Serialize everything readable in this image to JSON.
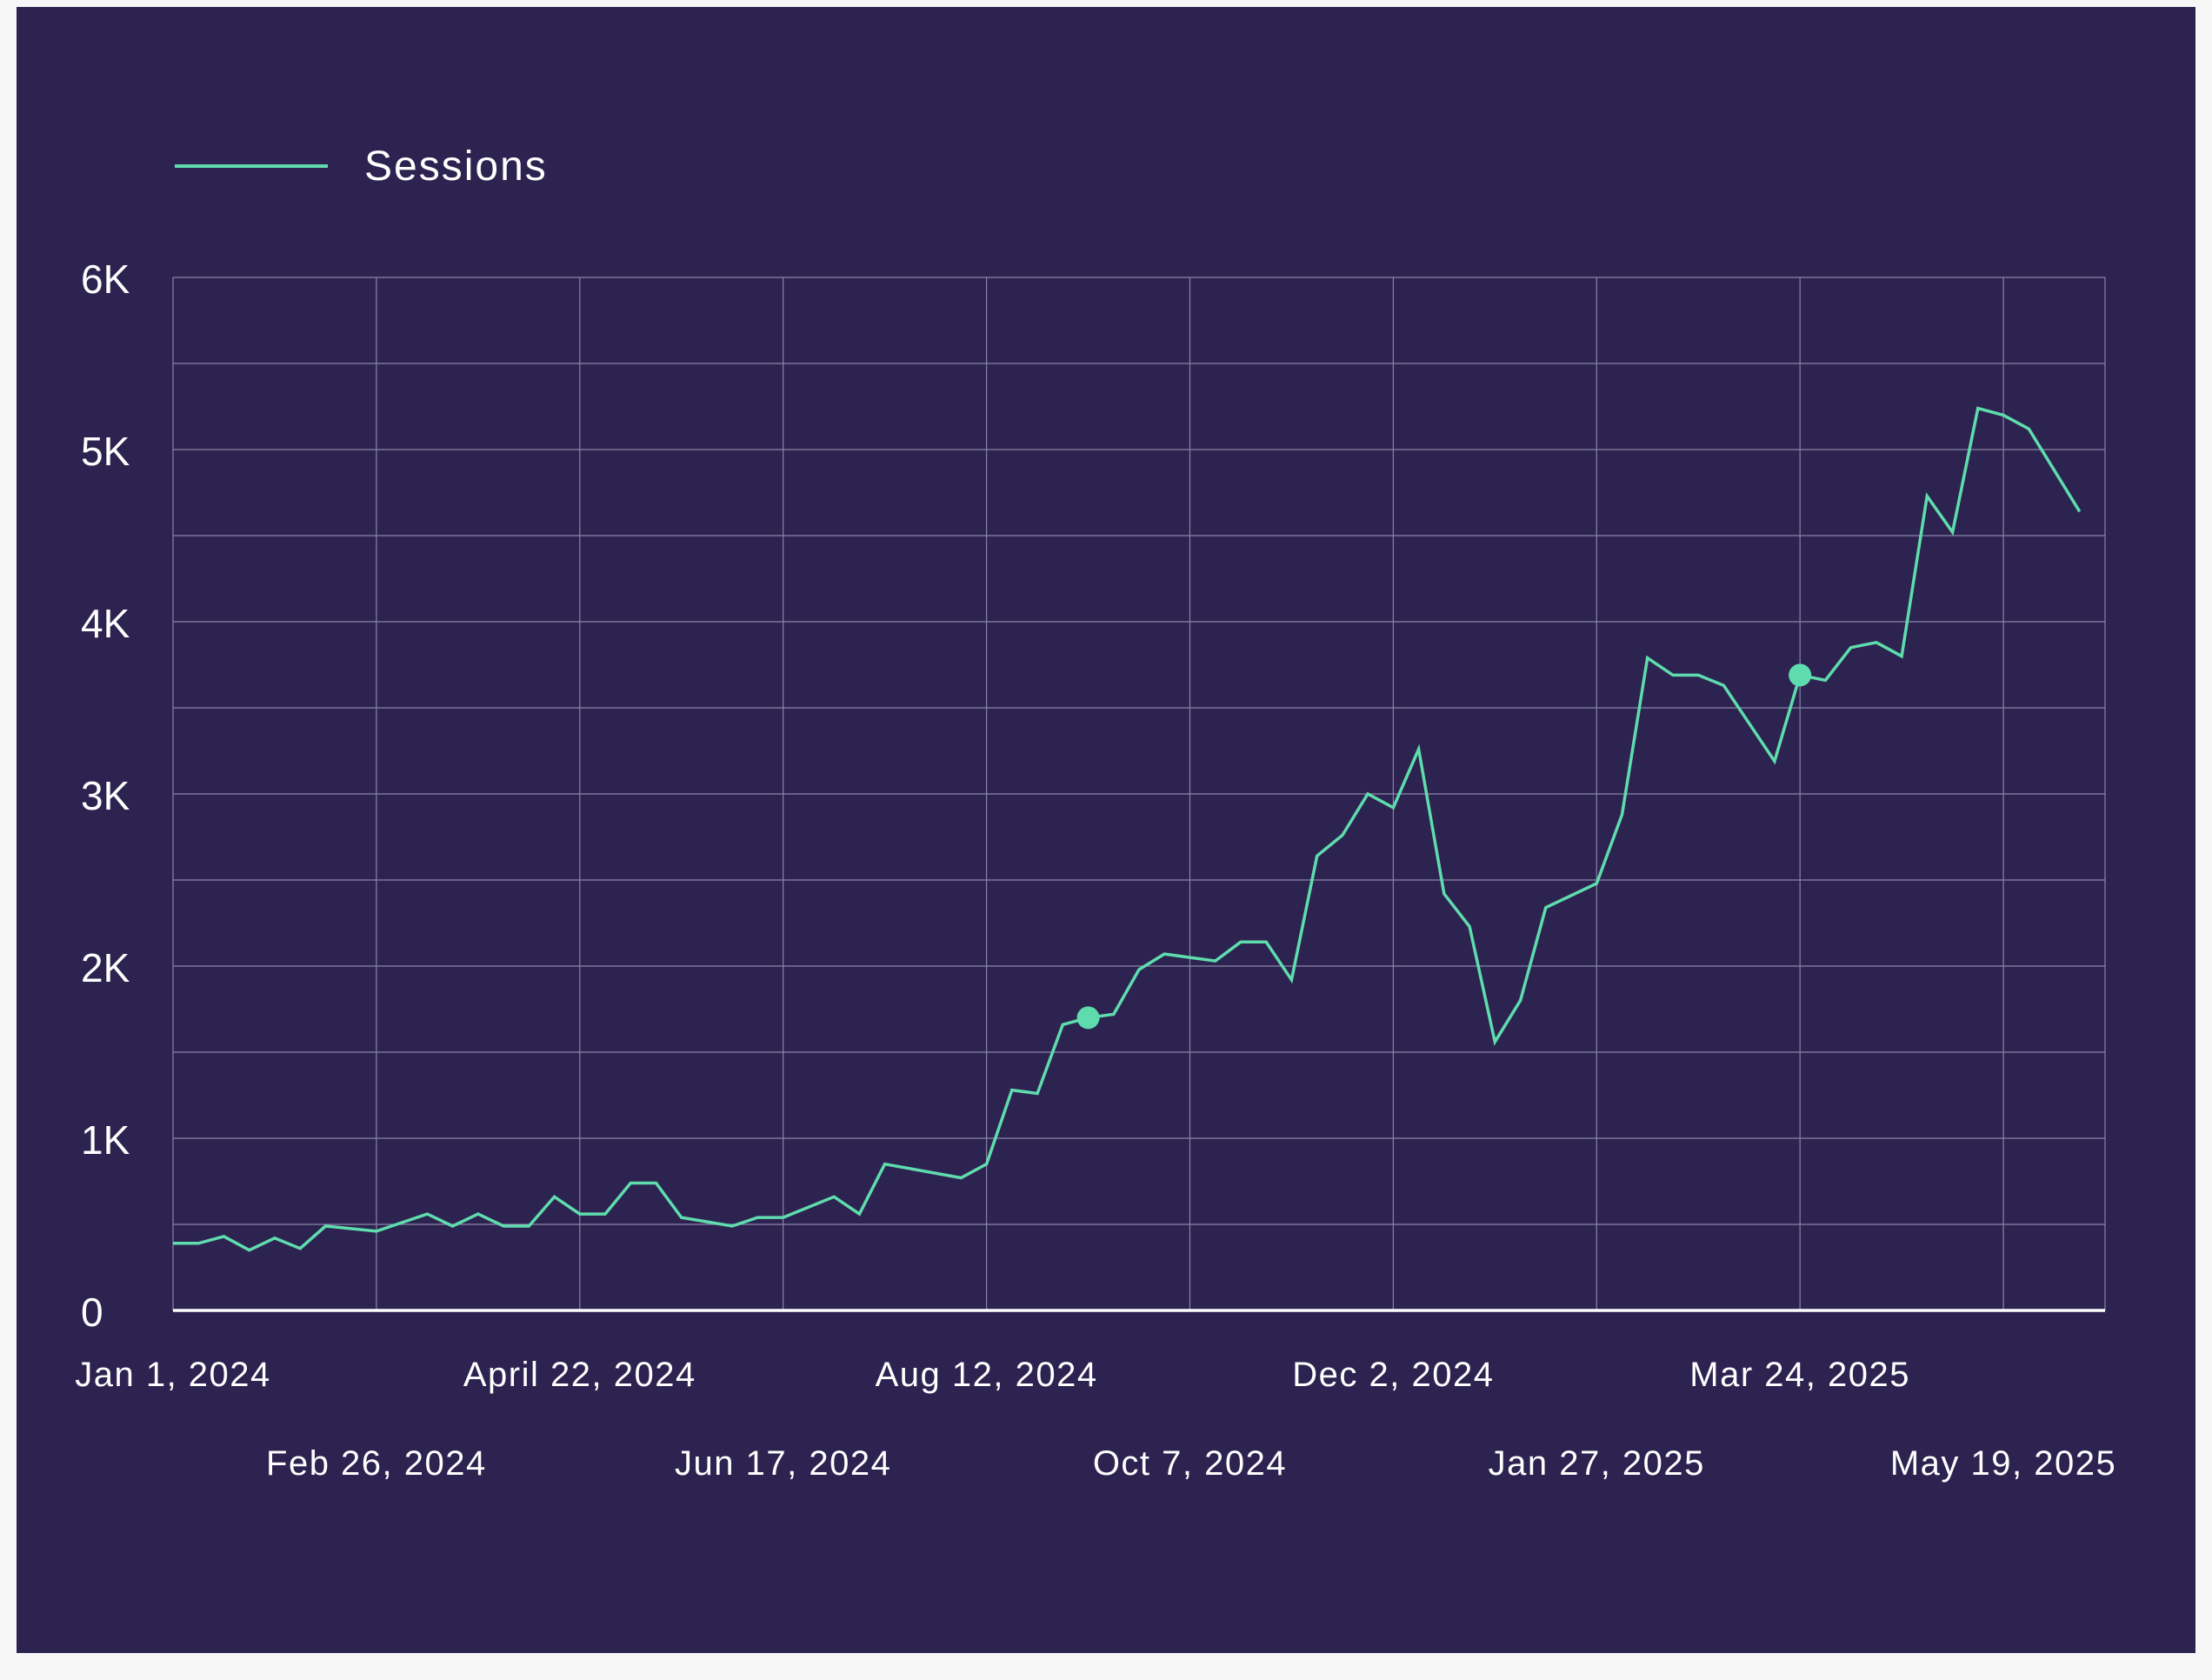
{
  "chart_data": {
    "type": "line",
    "title": "",
    "xlabel": "",
    "ylabel": "",
    "grid": true,
    "legend_position": "top-left",
    "ylim": [
      0,
      6000
    ],
    "y_ticks": [
      {
        "value": 0,
        "label": "0"
      },
      {
        "value": 1000,
        "label": "1K"
      },
      {
        "value": 2000,
        "label": "2K"
      },
      {
        "value": 3000,
        "label": "3K"
      },
      {
        "value": 4000,
        "label": "4K"
      },
      {
        "value": 5000,
        "label": "5K"
      },
      {
        "value": 6000,
        "label": "6K"
      }
    ],
    "xlim": [
      "2024-01-01",
      "2025-06-16"
    ],
    "x_ticks": [
      {
        "date": "2024-01-01",
        "label": "Jan 1, 2024",
        "row": 0
      },
      {
        "date": "2024-02-26",
        "label": "Feb 26, 2024",
        "row": 1
      },
      {
        "date": "2024-04-22",
        "label": "April 22, 2024",
        "row": 0
      },
      {
        "date": "2024-06-17",
        "label": "Jun 17, 2024",
        "row": 1
      },
      {
        "date": "2024-08-12",
        "label": "Aug 12, 2024",
        "row": 0
      },
      {
        "date": "2024-10-07",
        "label": "Oct 7, 2024",
        "row": 1
      },
      {
        "date": "2024-12-02",
        "label": "Dec 2, 2024",
        "row": 0
      },
      {
        "date": "2025-01-27",
        "label": "Jan 27, 2025",
        "row": 1
      },
      {
        "date": "2025-03-24",
        "label": "Mar 24, 2025",
        "row": 0
      },
      {
        "date": "2025-05-19",
        "label": "May 19, 2025",
        "row": 1
      }
    ],
    "x_gridlines": [
      "2024-01-01",
      "2024-02-26",
      "2024-04-22",
      "2024-06-17",
      "2024-08-12",
      "2024-10-07",
      "2024-12-02",
      "2025-01-27",
      "2025-03-24",
      "2025-05-19",
      "2025-06-16"
    ],
    "series": [
      {
        "name": "Sessions",
        "color": "#5fdcae",
        "highlight_color": "#5fdcae",
        "points": [
          {
            "x": "2024-01-01",
            "y": 390
          },
          {
            "x": "2024-01-08",
            "y": 390
          },
          {
            "x": "2024-01-15",
            "y": 430
          },
          {
            "x": "2024-01-22",
            "y": 350
          },
          {
            "x": "2024-01-29",
            "y": 420
          },
          {
            "x": "2024-02-05",
            "y": 360
          },
          {
            "x": "2024-02-12",
            "y": 490
          },
          {
            "x": "2024-02-26",
            "y": 460
          },
          {
            "x": "2024-03-11",
            "y": 560
          },
          {
            "x": "2024-03-18",
            "y": 490
          },
          {
            "x": "2024-03-25",
            "y": 560
          },
          {
            "x": "2024-04-01",
            "y": 490
          },
          {
            "x": "2024-04-08",
            "y": 490
          },
          {
            "x": "2024-04-15",
            "y": 660
          },
          {
            "x": "2024-04-22",
            "y": 560
          },
          {
            "x": "2024-04-29",
            "y": 560
          },
          {
            "x": "2024-05-06",
            "y": 740
          },
          {
            "x": "2024-05-13",
            "y": 740
          },
          {
            "x": "2024-05-20",
            "y": 540
          },
          {
            "x": "2024-06-03",
            "y": 490
          },
          {
            "x": "2024-06-10",
            "y": 540
          },
          {
            "x": "2024-06-17",
            "y": 540
          },
          {
            "x": "2024-07-01",
            "y": 660
          },
          {
            "x": "2024-07-08",
            "y": 560
          },
          {
            "x": "2024-07-15",
            "y": 850
          },
          {
            "x": "2024-08-05",
            "y": 770
          },
          {
            "x": "2024-08-12",
            "y": 850
          },
          {
            "x": "2024-08-19",
            "y": 1280
          },
          {
            "x": "2024-08-26",
            "y": 1260
          },
          {
            "x": "2024-09-02",
            "y": 1660
          },
          {
            "x": "2024-09-09",
            "y": 1700,
            "highlight": true
          },
          {
            "x": "2024-09-16",
            "y": 1720
          },
          {
            "x": "2024-09-23",
            "y": 1980
          },
          {
            "x": "2024-09-30",
            "y": 2070
          },
          {
            "x": "2024-10-14",
            "y": 2030
          },
          {
            "x": "2024-10-21",
            "y": 2140
          },
          {
            "x": "2024-10-28",
            "y": 2140
          },
          {
            "x": "2024-11-04",
            "y": 1920
          },
          {
            "x": "2024-11-11",
            "y": 2640
          },
          {
            "x": "2024-11-18",
            "y": 2760
          },
          {
            "x": "2024-11-25",
            "y": 3000
          },
          {
            "x": "2024-12-02",
            "y": 2920
          },
          {
            "x": "2024-12-09",
            "y": 3260
          },
          {
            "x": "2024-12-16",
            "y": 2420
          },
          {
            "x": "2024-12-23",
            "y": 2230
          },
          {
            "x": "2024-12-30",
            "y": 1560
          },
          {
            "x": "2025-01-06",
            "y": 1800
          },
          {
            "x": "2025-01-13",
            "y": 2340
          },
          {
            "x": "2025-01-27",
            "y": 2480
          },
          {
            "x": "2025-02-03",
            "y": 2880
          },
          {
            "x": "2025-02-10",
            "y": 3790
          },
          {
            "x": "2025-02-17",
            "y": 3690
          },
          {
            "x": "2025-02-24",
            "y": 3690
          },
          {
            "x": "2025-03-03",
            "y": 3630
          },
          {
            "x": "2025-03-17",
            "y": 3190
          },
          {
            "x": "2025-03-24",
            "y": 3690,
            "highlight": true
          },
          {
            "x": "2025-03-31",
            "y": 3660
          },
          {
            "x": "2025-04-07",
            "y": 3850
          },
          {
            "x": "2025-04-14",
            "y": 3880
          },
          {
            "x": "2025-04-21",
            "y": 3800
          },
          {
            "x": "2025-04-28",
            "y": 4730
          },
          {
            "x": "2025-05-05",
            "y": 4520
          },
          {
            "x": "2025-05-12",
            "y": 5240
          },
          {
            "x": "2025-05-19",
            "y": 5200
          },
          {
            "x": "2025-05-26",
            "y": 5120
          },
          {
            "x": "2025-06-09",
            "y": 4640
          }
        ]
      }
    ]
  }
}
